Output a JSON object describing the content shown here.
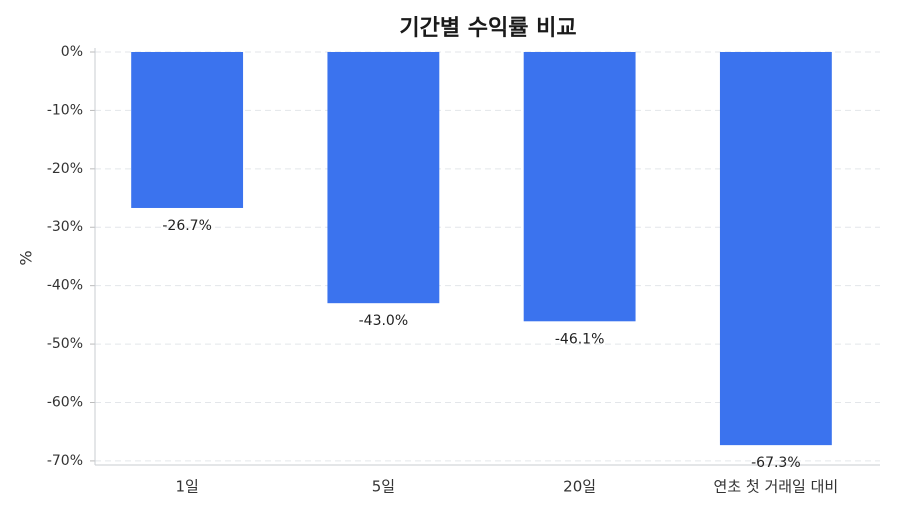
{
  "chart_data": {
    "type": "bar",
    "title": "기간별 수익률 비교",
    "y_label": "%",
    "categories": [
      "1일",
      "5일",
      "20일",
      "연초 첫 거래일 대비"
    ],
    "values": [
      -26.7,
      -43.0,
      -46.1,
      -67.3
    ],
    "value_labels": [
      "-26.7%",
      "-43.0%",
      "-46.1%",
      "-67.3%"
    ],
    "color": "#3b73ee",
    "ylim": [
      -70.7,
      0
    ],
    "yticks": [
      {
        "value": 0,
        "label": "0%"
      },
      {
        "value": -10,
        "label": "-10%"
      },
      {
        "value": -20,
        "label": "-20%"
      },
      {
        "value": -30,
        "label": "-30%"
      },
      {
        "value": -40,
        "label": "-40%"
      },
      {
        "value": -50,
        "label": "-50%"
      },
      {
        "value": -60,
        "label": "-60%"
      },
      {
        "value": -70,
        "label": "-70%"
      }
    ],
    "grid": true
  }
}
